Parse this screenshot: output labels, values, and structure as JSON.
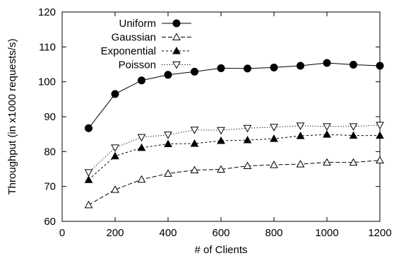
{
  "chart_data": {
    "type": "line",
    "title": "",
    "xlabel": "# of Clients",
    "ylabel": "Throughput (in x1000 requests/s)",
    "xlim": [
      0,
      1200
    ],
    "ylim": [
      60,
      120
    ],
    "x_ticks": [
      0,
      200,
      400,
      600,
      800,
      1000,
      1200
    ],
    "y_ticks": [
      60,
      70,
      80,
      90,
      100,
      110,
      120
    ],
    "grid": false,
    "legend_position": "top-left",
    "x": [
      100,
      200,
      300,
      400,
      500,
      600,
      700,
      800,
      900,
      1000,
      1100,
      1200
    ],
    "series": [
      {
        "name": "Uniform",
        "marker": "filled-circle",
        "line_style": "solid",
        "values": [
          86.7,
          96.5,
          100.4,
          102.0,
          102.9,
          103.9,
          103.8,
          104.1,
          104.6,
          105.4,
          104.9,
          104.6
        ]
      },
      {
        "name": "Gaussian",
        "marker": "open-triangle-up",
        "line_style": "dashed",
        "values": [
          64.7,
          69.1,
          72.0,
          73.7,
          74.7,
          74.9,
          75.9,
          76.2,
          76.4,
          76.9,
          76.9,
          77.5
        ]
      },
      {
        "name": "Exponential",
        "marker": "filled-triangle-up",
        "line_style": "short-dashed",
        "values": [
          71.9,
          78.7,
          81.1,
          82.2,
          82.3,
          83.1,
          83.3,
          83.7,
          84.5,
          84.9,
          84.6,
          84.6
        ]
      },
      {
        "name": "Poisson",
        "marker": "open-triangle-down",
        "line_style": "dotted",
        "values": [
          74.0,
          81.1,
          84.1,
          84.8,
          86.2,
          86.1,
          86.7,
          87.0,
          87.4,
          87.2,
          87.2,
          87.6
        ]
      }
    ]
  }
}
